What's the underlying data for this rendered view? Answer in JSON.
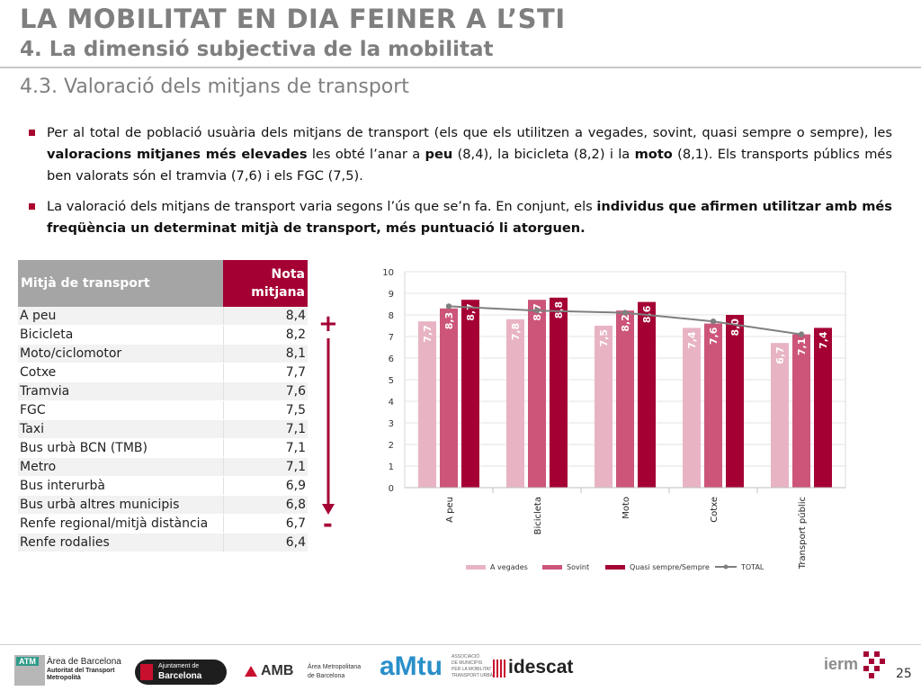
{
  "header": {
    "title": "LA MOBILITAT EN DIA FEINER A L’STI",
    "subtitle": "4. La dimensió subjectiva de la mobilitat",
    "section": "4.3. Valoració dels mitjans de transport"
  },
  "bullets": [
    {
      "parts": [
        {
          "t": "Per al total de població usuària dels mitjans de transport (els que els utilitzen a vegades, sovint, quasi sempre o sempre), les ",
          "b": false
        },
        {
          "t": "valoracions mitjanes més elevades",
          "b": true
        },
        {
          "t": " les obté l’anar a ",
          "b": false
        },
        {
          "t": "peu",
          "b": true
        },
        {
          "t": " (8,4), la bicicleta (8,2) i la ",
          "b": false
        },
        {
          "t": "moto",
          "b": true
        },
        {
          "t": " (8,1). Els transports públics més ben valorats són el tramvia (7,6) i els FGC (7,5).",
          "b": false
        }
      ]
    },
    {
      "parts": [
        {
          "t": "La valoració dels mitjans de transport varia segons l’ús que se’n fa. En conjunt, els ",
          "b": false
        },
        {
          "t": "individus que afirmen utilitzar amb més freqüència un determinat mitjà de transport, més puntuació li atorguen.",
          "b": true
        }
      ]
    }
  ],
  "table": {
    "header_col1": "Mitjà de transport",
    "header_col2_line1": "Nota",
    "header_col2_line2": "mitjana",
    "rows": [
      {
        "name": "A peu",
        "value": "8,4"
      },
      {
        "name": "Bicicleta",
        "value": "8,2"
      },
      {
        "name": "Moto/ciclomotor",
        "value": "8,1"
      },
      {
        "name": "Cotxe",
        "value": "7,7"
      },
      {
        "name": "Tramvia",
        "value": "7,6"
      },
      {
        "name": "FGC",
        "value": "7,5"
      },
      {
        "name": "Taxi",
        "value": "7,1"
      },
      {
        "name": "Bus urbà BCN (TMB)",
        "value": "7,1"
      },
      {
        "name": "Metro",
        "value": "7,1"
      },
      {
        "name": "Bus interurbà",
        "value": "6,9"
      },
      {
        "name": "Bus urbà altres municipis",
        "value": "6,8"
      },
      {
        "name": "Renfe regional/mitjà distància",
        "value": "6,7"
      },
      {
        "name": "Renfe rodalies",
        "value": "6,4"
      }
    ]
  },
  "scale_arrow": {
    "plus": "+",
    "minus": "-",
    "color": "#a50034"
  },
  "chart_data": {
    "type": "bar",
    "categories": [
      "A peu",
      "Bicicleta",
      "Moto",
      "Cotxe",
      "Transport públic"
    ],
    "series": [
      {
        "name": "A vegades",
        "values": [
          7.7,
          7.8,
          7.5,
          7.4,
          6.7
        ],
        "labels": [
          "7,7",
          "7,8",
          "7,5",
          "7,4",
          "6,7"
        ],
        "color": "#e8b4c4"
      },
      {
        "name": "Sovint",
        "values": [
          8.3,
          8.7,
          8.2,
          7.6,
          7.1
        ],
        "labels": [
          "8,3",
          "8,7",
          "8,2",
          "7,6",
          "7,1"
        ],
        "color": "#cc5579"
      },
      {
        "name": "Quasi sempre/Sempre",
        "values": [
          8.7,
          8.8,
          8.6,
          8.0,
          7.4
        ],
        "labels": [
          "8,7",
          "8,8",
          "8,6",
          "8,0",
          "7,4"
        ],
        "color": "#a50034"
      }
    ],
    "line_series": {
      "name": "TOTAL",
      "values": [
        8.4,
        8.2,
        8.1,
        7.7,
        7.1
      ],
      "color": "#7f7f7f"
    },
    "ylim": [
      0,
      10
    ],
    "yticks": [
      "0",
      "1",
      "2",
      "3",
      "4",
      "5",
      "6",
      "7",
      "8",
      "9",
      "10"
    ],
    "grid": true,
    "legend_position": "bottom"
  },
  "footer": {
    "atm_badge": "ATM",
    "atm_line1": "Àrea de Barcelona",
    "atm_line2": "Autoritat del Transport",
    "atm_line3": "Metropolità",
    "ajuntament_line1": "Ajuntament de",
    "ajuntament_line2": "Barcelona",
    "amb": "AMB",
    "amb_line1": "Àrea Metropolitana",
    "amb_line2": "de Barcelona",
    "amtu": "aMtu",
    "amtu_small1": "ASSOCIACIÓ",
    "amtu_small2": "DE MUNICIPIS",
    "amtu_small3": "PER LA MOBILITAT I EL",
    "amtu_small4": "TRANSPORT URBÀ",
    "idescat": "idescat",
    "iermb": "ierm",
    "page_number": "25"
  }
}
